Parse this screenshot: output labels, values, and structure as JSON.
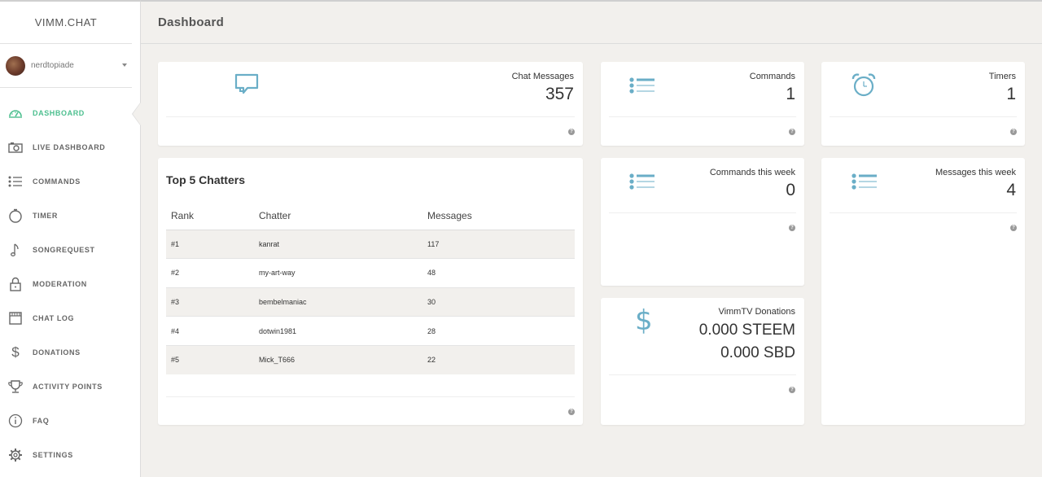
{
  "app": {
    "brand": "VIMM.CHAT"
  },
  "user": {
    "name": "nerdtopiade"
  },
  "nav": [
    {
      "label": "DASHBOARD",
      "icon": "gauge-icon",
      "active": true
    },
    {
      "label": "LIVE DASHBOARD",
      "icon": "camera-icon",
      "active": false
    },
    {
      "label": "COMMANDS",
      "icon": "list-icon",
      "active": false
    },
    {
      "label": "TIMER",
      "icon": "stopwatch-icon",
      "active": false
    },
    {
      "label": "SONGREQUEST",
      "icon": "music-note-icon",
      "active": false
    },
    {
      "label": "MODERATION",
      "icon": "lock-icon",
      "active": false
    },
    {
      "label": "CHAT LOG",
      "icon": "film-icon",
      "active": false
    },
    {
      "label": "DONATIONS",
      "icon": "dollar-icon",
      "active": false
    },
    {
      "label": "ACTIVITY POINTS",
      "icon": "trophy-icon",
      "active": false
    },
    {
      "label": "FAQ",
      "icon": "info-icon",
      "active": false
    },
    {
      "label": "SETTINGS",
      "icon": "gear-icon",
      "active": false
    }
  ],
  "header": {
    "title": "Dashboard"
  },
  "stats": {
    "chat_messages": {
      "label": "Chat Messages",
      "value": "357"
    },
    "commands": {
      "label": "Commands",
      "value": "1"
    },
    "timers": {
      "label": "Timers",
      "value": "1"
    },
    "commands_week": {
      "label": "Commands this week",
      "value": "0"
    },
    "messages_week": {
      "label": "Messages this week",
      "value": "4"
    },
    "donations": {
      "label": "VimmTV Donations",
      "steem": "0.000 STEEM",
      "sbd": "0.000 SBD"
    }
  },
  "top_chatters": {
    "title": "Top 5 Chatters",
    "columns": [
      "Rank",
      "Chatter",
      "Messages"
    ],
    "rows": [
      {
        "rank": "#1",
        "chatter": "kanrat",
        "messages": "117"
      },
      {
        "rank": "#2",
        "chatter": "my-art-way",
        "messages": "48"
      },
      {
        "rank": "#3",
        "chatter": "bembelmaniac",
        "messages": "30"
      },
      {
        "rank": "#4",
        "chatter": "dotwin1981",
        "messages": "28"
      },
      {
        "rank": "#5",
        "chatter": "Mick_T666",
        "messages": "22"
      }
    ]
  },
  "help_glyph": "?",
  "colors": {
    "accent": "#4cbf8f",
    "icon_blue": "#6aaec7",
    "nav_icon": "#666666"
  }
}
